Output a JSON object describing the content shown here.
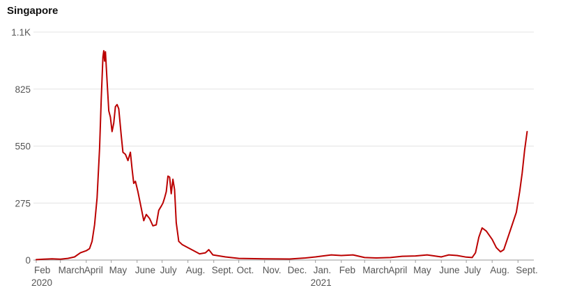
{
  "chart_data": {
    "type": "line",
    "title": "Singapore",
    "xlabel": "",
    "ylabel": "",
    "ylim": [
      0,
      1100
    ],
    "xlim": [
      "2020-02-01",
      "2021-09-20"
    ],
    "grid": true,
    "y_ticks": [
      {
        "value": 0,
        "label": "0"
      },
      {
        "value": 275,
        "label": "275"
      },
      {
        "value": 550,
        "label": "550"
      },
      {
        "value": 825,
        "label": "825"
      },
      {
        "value": 1100,
        "label": "1.1K"
      }
    ],
    "x_ticks": [
      {
        "date": "2020-02-01",
        "label": "Feb",
        "sub": "2020"
      },
      {
        "date": "2020-03-01",
        "label": "March",
        "sub": ""
      },
      {
        "date": "2020-04-01",
        "label": "April",
        "sub": ""
      },
      {
        "date": "2020-05-01",
        "label": "May",
        "sub": ""
      },
      {
        "date": "2020-06-01",
        "label": "June",
        "sub": ""
      },
      {
        "date": "2020-07-01",
        "label": "July",
        "sub": ""
      },
      {
        "date": "2020-08-01",
        "label": "Aug.",
        "sub": ""
      },
      {
        "date": "2020-09-01",
        "label": "Sept.",
        "sub": ""
      },
      {
        "date": "2020-10-01",
        "label": "Oct.",
        "sub": ""
      },
      {
        "date": "2020-11-01",
        "label": "Nov.",
        "sub": ""
      },
      {
        "date": "2020-12-01",
        "label": "Dec.",
        "sub": ""
      },
      {
        "date": "2021-01-01",
        "label": "Jan.",
        "sub": "2021"
      },
      {
        "date": "2021-02-01",
        "label": "Feb",
        "sub": ""
      },
      {
        "date": "2021-03-01",
        "label": "March",
        "sub": ""
      },
      {
        "date": "2021-04-01",
        "label": "April",
        "sub": ""
      },
      {
        "date": "2021-05-01",
        "label": "May",
        "sub": ""
      },
      {
        "date": "2021-06-01",
        "label": "June",
        "sub": ""
      },
      {
        "date": "2021-07-01",
        "label": "July",
        "sub": ""
      },
      {
        "date": "2021-08-01",
        "label": "Aug.",
        "sub": ""
      },
      {
        "date": "2021-09-01",
        "label": "Sept.",
        "sub": ""
      }
    ],
    "line_color": "#bb0000",
    "series": [
      {
        "name": "",
        "points": [
          [
            "2020-02-01",
            2
          ],
          [
            "2020-02-10",
            4
          ],
          [
            "2020-02-20",
            6
          ],
          [
            "2020-03-01",
            4
          ],
          [
            "2020-03-10",
            8
          ],
          [
            "2020-03-18",
            15
          ],
          [
            "2020-03-25",
            35
          ],
          [
            "2020-04-01",
            45
          ],
          [
            "2020-04-05",
            55
          ],
          [
            "2020-04-08",
            90
          ],
          [
            "2020-04-11",
            170
          ],
          [
            "2020-04-14",
            300
          ],
          [
            "2020-04-17",
            540
          ],
          [
            "2020-04-19",
            780
          ],
          [
            "2020-04-21",
            980
          ],
          [
            "2020-04-22",
            1010
          ],
          [
            "2020-04-23",
            960
          ],
          [
            "2020-04-24",
            1005
          ],
          [
            "2020-04-26",
            860
          ],
          [
            "2020-04-28",
            720
          ],
          [
            "2020-04-30",
            690
          ],
          [
            "2020-05-02",
            620
          ],
          [
            "2020-05-04",
            660
          ],
          [
            "2020-05-06",
            740
          ],
          [
            "2020-05-08",
            750
          ],
          [
            "2020-05-10",
            730
          ],
          [
            "2020-05-13",
            600
          ],
          [
            "2020-05-15",
            520
          ],
          [
            "2020-05-18",
            510
          ],
          [
            "2020-05-21",
            480
          ],
          [
            "2020-05-24",
            520
          ],
          [
            "2020-05-26",
            440
          ],
          [
            "2020-05-28",
            370
          ],
          [
            "2020-05-30",
            380
          ],
          [
            "2020-06-02",
            330
          ],
          [
            "2020-06-05",
            270
          ],
          [
            "2020-06-09",
            190
          ],
          [
            "2020-06-12",
            220
          ],
          [
            "2020-06-16",
            200
          ],
          [
            "2020-06-20",
            165
          ],
          [
            "2020-06-24",
            170
          ],
          [
            "2020-06-27",
            240
          ],
          [
            "2020-06-30",
            260
          ],
          [
            "2020-07-02",
            275
          ],
          [
            "2020-07-04",
            300
          ],
          [
            "2020-07-06",
            330
          ],
          [
            "2020-07-08",
            405
          ],
          [
            "2020-07-10",
            400
          ],
          [
            "2020-07-12",
            320
          ],
          [
            "2020-07-14",
            390
          ],
          [
            "2020-07-16",
            340
          ],
          [
            "2020-07-18",
            180
          ],
          [
            "2020-07-21",
            90
          ],
          [
            "2020-07-25",
            75
          ],
          [
            "2020-08-01",
            60
          ],
          [
            "2020-08-08",
            45
          ],
          [
            "2020-08-15",
            30
          ],
          [
            "2020-08-22",
            35
          ],
          [
            "2020-08-26",
            50
          ],
          [
            "2020-08-31",
            25
          ],
          [
            "2020-09-15",
            15
          ],
          [
            "2020-10-01",
            8
          ],
          [
            "2020-11-01",
            6
          ],
          [
            "2020-12-01",
            5
          ],
          [
            "2020-12-20",
            10
          ],
          [
            "2021-01-01",
            15
          ],
          [
            "2021-01-10",
            20
          ],
          [
            "2021-01-20",
            25
          ],
          [
            "2021-02-01",
            22
          ],
          [
            "2021-02-15",
            25
          ],
          [
            "2021-03-01",
            12
          ],
          [
            "2021-03-15",
            10
          ],
          [
            "2021-04-01",
            12
          ],
          [
            "2021-04-15",
            18
          ],
          [
            "2021-05-01",
            20
          ],
          [
            "2021-05-15",
            25
          ],
          [
            "2021-06-01",
            15
          ],
          [
            "2021-06-10",
            25
          ],
          [
            "2021-06-20",
            22
          ],
          [
            "2021-07-01",
            14
          ],
          [
            "2021-07-08",
            12
          ],
          [
            "2021-07-12",
            35
          ],
          [
            "2021-07-16",
            110
          ],
          [
            "2021-07-20",
            155
          ],
          [
            "2021-07-25",
            140
          ],
          [
            "2021-08-01",
            100
          ],
          [
            "2021-08-06",
            60
          ],
          [
            "2021-08-11",
            40
          ],
          [
            "2021-08-15",
            50
          ],
          [
            "2021-08-20",
            110
          ],
          [
            "2021-08-25",
            170
          ],
          [
            "2021-08-30",
            230
          ],
          [
            "2021-09-03",
            330
          ],
          [
            "2021-09-06",
            420
          ],
          [
            "2021-09-09",
            530
          ],
          [
            "2021-09-12",
            620
          ]
        ]
      }
    ]
  }
}
